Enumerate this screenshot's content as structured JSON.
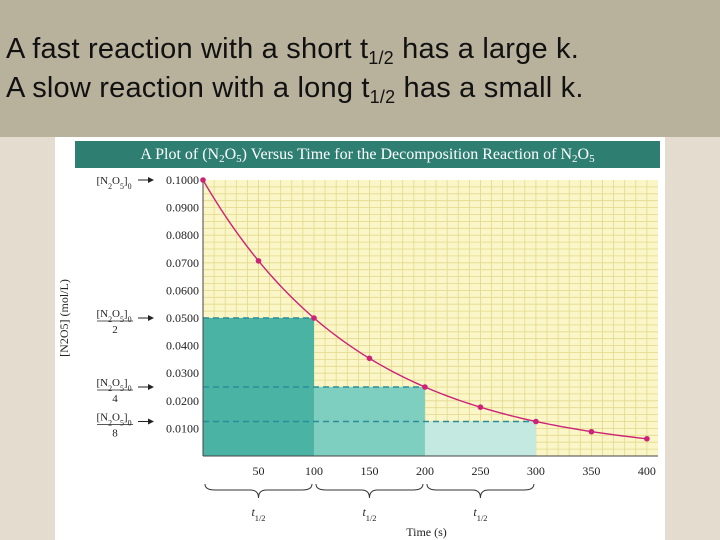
{
  "slide": {
    "line1": {
      "pre": "A fast reaction with a short t",
      "sub": "1/2",
      "post": " has a large k."
    },
    "line2": {
      "pre": "A slow reaction with a long t",
      "sub": "1/2",
      "post": " has a small k."
    },
    "caption": {
      "p1": "A Plot of (N",
      "s1": "2",
      "p2": "O",
      "s2": "5",
      "p3": ") Versus Time for the Decomposition Reaction of N",
      "s3": "2",
      "p4": "O",
      "s4": "5"
    }
  },
  "colors": {
    "plot_background": "#fbf6c8",
    "gridline": "#e2d98a",
    "curve": "#cc2277",
    "dashed_guides": "#2a8c99",
    "first_half_life_fill": "#4bb3a3",
    "second_half_life_fill": "#7fcfc0",
    "third_half_life_fill": "#c3e9e0",
    "axis_label_color": "#222222"
  },
  "chart_data": {
    "type": "line",
    "title": "",
    "xlabel": "Time (s)",
    "ylabel": "[N2O5] (mol/L)",
    "xlim": [
      0,
      410
    ],
    "ylim": [
      0.0,
      0.1
    ],
    "grid": true,
    "x_ticks": [
      50,
      100,
      150,
      200,
      250,
      300,
      350,
      400
    ],
    "x_tick_labels": [
      "50",
      "100",
      "150",
      "200",
      "250",
      "300",
      "350",
      "400"
    ],
    "y_ticks": [
      0.01,
      0.02,
      0.03,
      0.04,
      0.05,
      0.06,
      0.07,
      0.08,
      0.09,
      0.1
    ],
    "y_tick_labels": [
      "0.0100",
      "0.0200",
      "0.0300",
      "0.0400",
      "0.0500",
      "0.0600",
      "0.0700",
      "0.0800",
      "0.0900",
      "0.1000"
    ],
    "series": [
      {
        "x": [
          0,
          50,
          100,
          150,
          200,
          250,
          300,
          350,
          400
        ],
        "y": [
          0.1,
          0.0707,
          0.05,
          0.0354,
          0.025,
          0.0177,
          0.0125,
          0.0088,
          0.00625
        ]
      }
    ],
    "half_life_blocks": [
      {
        "x_start": 0,
        "x_end": 100,
        "concentration": 0.05
      },
      {
        "x_start": 100,
        "x_end": 200,
        "concentration": 0.025
      },
      {
        "x_start": 200,
        "x_end": 300,
        "concentration": 0.0125
      }
    ],
    "concentration_markers": [
      {
        "value": 0.1,
        "numerator": "[N2O5]0",
        "denominator": ""
      },
      {
        "value": 0.05,
        "numerator": "[N2O5]0",
        "denominator": "2"
      },
      {
        "value": 0.025,
        "numerator": "[N2O5]0",
        "denominator": "4"
      },
      {
        "value": 0.0125,
        "numerator": "[N2O5]0",
        "denominator": "8"
      }
    ],
    "annotations": [
      {
        "text": "t1/2",
        "x_start": 0,
        "x_end": 100
      },
      {
        "text": "t1/2",
        "x_start": 100,
        "x_end": 200
      },
      {
        "text": "t1/2",
        "x_start": 200,
        "x_end": 300
      }
    ]
  }
}
